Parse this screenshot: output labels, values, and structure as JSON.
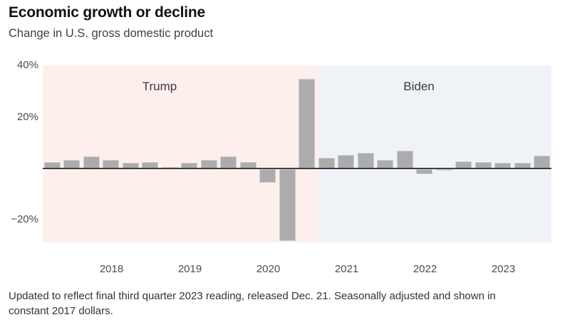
{
  "chart_data": {
    "type": "bar",
    "title": "Economic growth or decline",
    "subtitle": "Change in U.S. gross domestic product",
    "x": [
      "2017 Q2",
      "2017 Q3",
      "2017 Q4",
      "2018 Q1",
      "2018 Q2",
      "2018 Q3",
      "2018 Q4",
      "2019 Q1",
      "2019 Q2",
      "2019 Q3",
      "2019 Q4",
      "2020 Q1",
      "2020 Q2",
      "2020 Q3",
      "2020 Q4",
      "2021 Q1",
      "2021 Q2",
      "2021 Q3",
      "2021 Q4",
      "2022 Q1",
      "2022 Q2",
      "2022 Q3",
      "2022 Q4",
      "2023 Q1",
      "2023 Q2",
      "2023 Q3"
    ],
    "values": [
      2.4,
      3.2,
      4.6,
      3.3,
      2.1,
      2.5,
      0.6,
      2.2,
      3.4,
      4.6,
      2.6,
      -5.3,
      -28.0,
      34.8,
      4.2,
      5.2,
      6.2,
      3.3,
      7.0,
      -2.0,
      -0.6,
      2.7,
      2.6,
      2.2,
      2.1,
      4.9
    ],
    "ylim": [
      -30,
      40
    ],
    "yticks": [
      "40%",
      "20%",
      "−20%"
    ],
    "ytick_values": [
      40,
      20,
      -20
    ],
    "xticks": [
      "2018",
      "2019",
      "2020",
      "2021",
      "2022",
      "2023"
    ],
    "regions": [
      {
        "label": "Trump",
        "color": "#fcefec"
      },
      {
        "label": "Biden",
        "color": "#eff3f8"
      }
    ],
    "bar_color": "#acacac",
    "baseline_color": "#3f3f3f",
    "grid": false,
    "legend": "none"
  },
  "footnote": {
    "line1": "Updated to reflect final third quarter 2023 reading, released Dec. 21. Seasonally adjusted and shown in",
    "line2": "constant 2017 dollars."
  }
}
